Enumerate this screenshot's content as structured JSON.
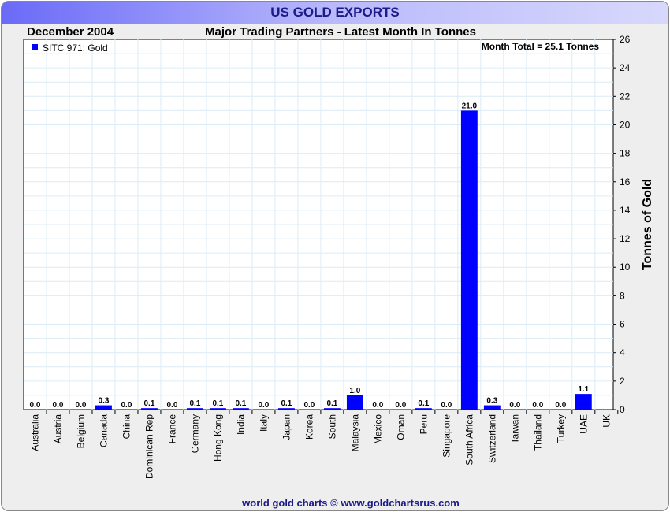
{
  "header": {
    "title": "US GOLD EXPORTS",
    "footer": "world gold charts © www.goldchartsrus.com"
  },
  "chart_data": {
    "type": "bar",
    "title": "Major Trading Partners - Latest Month In Tonnes",
    "date_label": "December 2004",
    "annotation": "Month Total = 25.1 Tonnes",
    "legend": [
      "SITC 971: Gold"
    ],
    "legend_position": "top-left",
    "ylabel": "Tonnes of Gold",
    "ylim": [
      0,
      26
    ],
    "yticks": [
      0,
      2,
      4,
      6,
      8,
      10,
      12,
      14,
      16,
      18,
      20,
      22,
      24,
      26
    ],
    "grid": true,
    "categories": [
      "Australia",
      "Austria",
      "Belgium",
      "Canada",
      "China",
      "Dominican Rep",
      "France",
      "Germany",
      "Hong Kong",
      "India",
      "Italy",
      "Japan",
      "Korea",
      "South",
      "Malaysia",
      "Mexico",
      "Oman",
      "Peru",
      "Singapore",
      "South Africa",
      "Switzerland",
      "Taiwan",
      "Thailand",
      "Turkey",
      "UAE",
      "UK"
    ],
    "values": [
      0.0,
      0.0,
      0.0,
      0.3,
      0.0,
      0.1,
      0.0,
      0.1,
      0.1,
      0.1,
      0.0,
      0.1,
      0.0,
      0.1,
      1.0,
      0.0,
      0.0,
      0.1,
      0.0,
      21.0,
      0.3,
      0.0,
      0.0,
      0.0,
      1.1,
      null
    ],
    "labels": [
      "0.0",
      "0.0",
      "0.0",
      "0.3",
      "0.0",
      "0.1",
      "0.0",
      "0.1",
      "0.1",
      "0.1",
      "0.0",
      "0.1",
      "0.0",
      "0.1",
      "1.0",
      "0.0",
      "0.0",
      "0.1",
      "0.0",
      "21.0",
      "0.3",
      "0.0",
      "0.0",
      "0.0",
      "1.1",
      ""
    ],
    "bar_color": "#0000ff"
  }
}
